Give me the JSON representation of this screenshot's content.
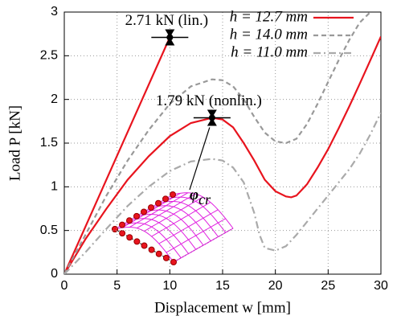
{
  "chart_data": {
    "type": "line",
    "x_label": "Displacement w [mm]",
    "y_label": "Load P [kN]",
    "xlim": [
      0,
      30
    ],
    "xticks": [
      0,
      5,
      10,
      15,
      20,
      25,
      30
    ],
    "ylim": [
      0,
      3
    ],
    "yticks": [
      0,
      0.5,
      1,
      1.5,
      2,
      2.5,
      3
    ],
    "grid": true,
    "legend": "upper right",
    "series": [
      {
        "name": "h = 12.7 mm",
        "color": "#e8141e",
        "dash": "solid",
        "x": [
          0,
          2,
          4,
          6,
          8,
          10,
          12,
          14,
          15,
          16,
          17,
          18,
          19,
          20,
          21,
          21.5,
          22,
          23,
          24,
          25,
          26,
          27,
          28,
          29,
          30
        ],
        "values": [
          0,
          0.4,
          0.75,
          1.08,
          1.35,
          1.58,
          1.73,
          1.79,
          1.77,
          1.68,
          1.5,
          1.3,
          1.08,
          0.95,
          0.89,
          0.88,
          0.9,
          1.03,
          1.22,
          1.43,
          1.67,
          1.92,
          2.18,
          2.45,
          2.72
        ]
      },
      {
        "name": "h = 14.0 mm",
        "color": "#999999",
        "dash": "dashed",
        "x": [
          0,
          2,
          4,
          6,
          8,
          10,
          12,
          14,
          15,
          16,
          17,
          18,
          19,
          20,
          21,
          22,
          23,
          24,
          25,
          26,
          27,
          28,
          29
        ],
        "values": [
          0,
          0.45,
          0.9,
          1.3,
          1.65,
          1.95,
          2.15,
          2.23,
          2.22,
          2.15,
          2.0,
          1.8,
          1.62,
          1.52,
          1.5,
          1.55,
          1.72,
          1.95,
          2.2,
          2.45,
          2.68,
          2.88,
          3.0
        ]
      },
      {
        "name": "h = 11.0 mm",
        "color": "#aaaaaa",
        "dash": "dashdot",
        "x": [
          0,
          2,
          4,
          6,
          8,
          10,
          12,
          14,
          15,
          16,
          17,
          18,
          18.5,
          19,
          20,
          21,
          22,
          23,
          24,
          25,
          26,
          27,
          28,
          29,
          30
        ],
        "values": [
          0,
          0.25,
          0.52,
          0.78,
          1.0,
          1.18,
          1.29,
          1.32,
          1.3,
          1.22,
          1.05,
          0.7,
          0.45,
          0.3,
          0.27,
          0.32,
          0.45,
          0.6,
          0.75,
          0.9,
          1.05,
          1.2,
          1.38,
          1.6,
          1.85
        ]
      }
    ],
    "reference_line": {
      "color": "#e8141e",
      "x": [
        0,
        10
      ],
      "values": [
        0,
        2.71
      ]
    },
    "annotations": [
      {
        "text": "2.71 kN (lin.)",
        "x": 10,
        "y": 2.71
      },
      {
        "text": "1.79 kN (nonlin.)",
        "x": 14,
        "y": 1.79
      }
    ],
    "critical_label": {
      "symbol": "φ",
      "subscript": "cr"
    }
  }
}
